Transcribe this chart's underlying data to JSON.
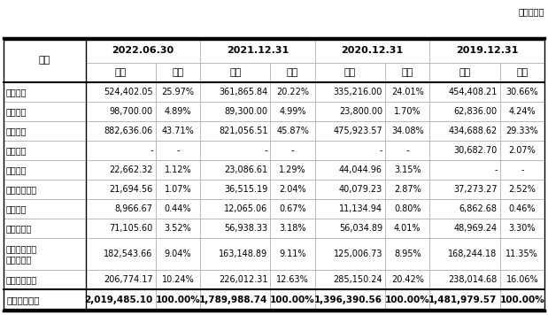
{
  "unit_label": "单位：万元",
  "date_headers": [
    "2022.06.30",
    "2021.12.31",
    "2020.12.31",
    "2019.12.31"
  ],
  "col0_header": "项目",
  "subheaders": [
    "金额",
    "占比"
  ],
  "rows": [
    [
      "短期借款",
      "524,402.05",
      "25.97%",
      "361,865.84",
      "20.22%",
      "335,216.00",
      "24.01%",
      "454,408.21",
      "30.66%"
    ],
    [
      "应付票据",
      "98,700.00",
      "4.89%",
      "89,300.00",
      "4.99%",
      "23,800.00",
      "1.70%",
      "62,836.00",
      "4.24%"
    ],
    [
      "应付账款",
      "882,636.06",
      "43.71%",
      "821,056.51",
      "45.87%",
      "475,923.57",
      "34.08%",
      "434,688.62",
      "29.33%"
    ],
    [
      "预收款项",
      "-",
      "-",
      "-",
      "-",
      "-",
      "-",
      "30,682.70",
      "2.07%"
    ],
    [
      "合同负债",
      "22,662.32",
      "1.12%",
      "23,086.61",
      "1.29%",
      "44,044.96",
      "3.15%",
      "-",
      "-"
    ],
    [
      "应付职工薪酬",
      "21,694.56",
      "1.07%",
      "36,515.19",
      "2.04%",
      "40,079.23",
      "2.87%",
      "37,273.27",
      "2.52%"
    ],
    [
      "应交税费",
      "8,966.67",
      "0.44%",
      "12,065.06",
      "0.67%",
      "11,134.94",
      "0.80%",
      "6,862.68",
      "0.46%"
    ],
    [
      "其他应付款",
      "71,105.60",
      "3.52%",
      "56,938.33",
      "3.18%",
      "56,034.89",
      "4.01%",
      "48,969.24",
      "3.30%"
    ],
    [
      "一年内到期的\n非流动负债",
      "182,543.66",
      "9.04%",
      "163,148.89",
      "9.11%",
      "125,006.73",
      "8.95%",
      "168,244.18",
      "11.35%"
    ],
    [
      "其他流动负债",
      "206,774.17",
      "10.24%",
      "226,012.31",
      "12.63%",
      "285,150.24",
      "20.42%",
      "238,014.68",
      "16.06%"
    ]
  ],
  "footer": [
    "流动负债合计",
    "2,019,485.10",
    "100.00%",
    "1,789,988.74",
    "100.00%",
    "1,396,390.56",
    "100.00%",
    "1,481,979.57",
    "100.00%"
  ],
  "header_bg": "#ffffff",
  "header_fg": "#000000",
  "row_bg": "#ffffff",
  "row_fg": "#000000",
  "footer_bg": "#ffffff",
  "footer_fg": "#000000",
  "grid_color": "#aaaaaa",
  "thick_line_color": "#000000",
  "fig_bg": "#ffffff",
  "unit_fontsize": 7,
  "header_fontsize": 8,
  "cell_fontsize": 7,
  "footer_fontsize": 7.5
}
